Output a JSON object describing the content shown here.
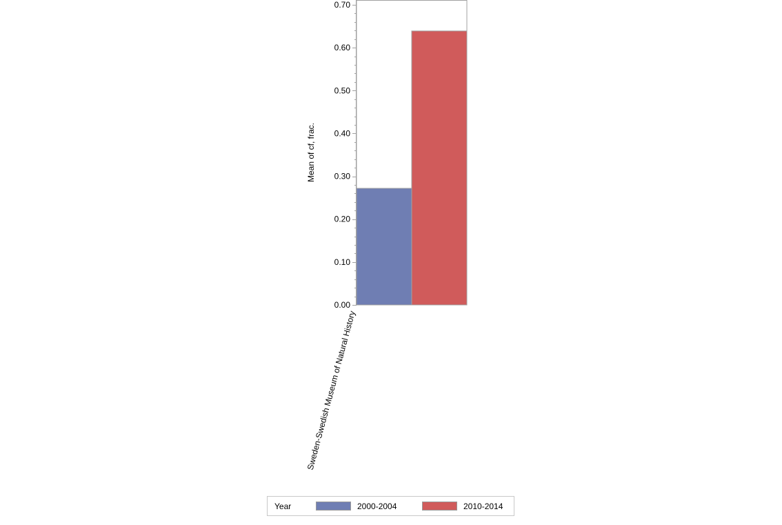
{
  "chart_data": {
    "type": "bar",
    "title": "",
    "xlabel": "",
    "ylabel": "Mean of cf, frac.",
    "ylim": [
      0,
      0.7
    ],
    "yticks": [
      "0.00",
      "0.10",
      "0.20",
      "0.30",
      "0.40",
      "0.50",
      "0.60",
      "0.70"
    ],
    "categories": [
      "Sweden-Swedish Museum of Natural History"
    ],
    "series": [
      {
        "name": "2000-2004",
        "values": [
          0.272
        ],
        "color": "#6f7eb3"
      },
      {
        "name": "2010-2014",
        "values": [
          0.639
        ],
        "color": "#d05b5b"
      }
    ],
    "legend": {
      "title": "Year",
      "placement": "bottom"
    },
    "grid": false
  }
}
